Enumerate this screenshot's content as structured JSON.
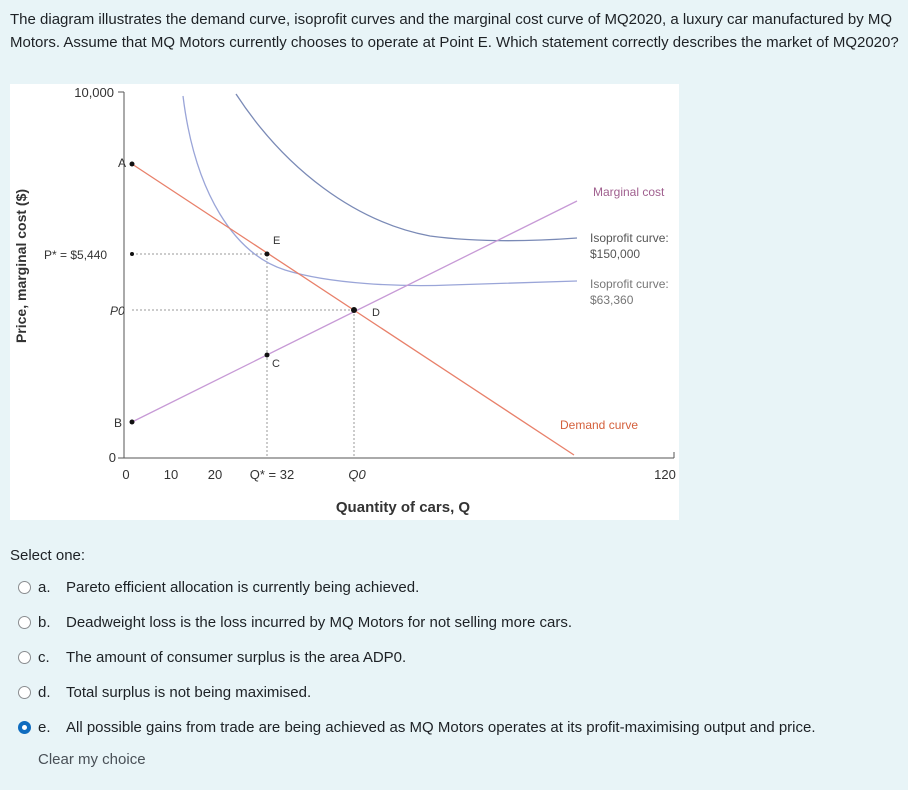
{
  "question": {
    "text": "The diagram illustrates the demand curve, isoprofit curves and the marginal cost curve of MQ2020, a luxury car manufactured by MQ Motors. Assume that MQ Motors currently chooses to operate at Point E. Which statement correctly describes the market of MQ2020?"
  },
  "figure": {
    "y_axis_label": "Price, marginal cost ($)",
    "x_axis_label": "Quantity of cars, Q",
    "y_tick_top": "10,000",
    "y_tick_zero": "0",
    "x_ticks": [
      "0",
      "10",
      "20",
      "Q* = 32",
      "Q0",
      "120"
    ],
    "points": {
      "A": "A",
      "B": "B",
      "C": "C",
      "D": "D",
      "E": "E"
    },
    "price_labels": {
      "p_star": "P* = $5,440",
      "p0": "P0"
    },
    "curve_labels": {
      "marginal_cost": "Marginal cost",
      "isoprofit_high": "Isoprofit curve:",
      "isoprofit_high_value": "$150,000",
      "isoprofit_low": "Isoprofit curve:",
      "isoprofit_low_value": "$63,360",
      "demand": "Demand curve"
    },
    "colors": {
      "demand": "#e8806a",
      "marginal_cost": "#c79ad6",
      "isoprofit_high": "#7a8ab6",
      "isoprofit_low": "#9aa5d8",
      "marginal_cost_label": "#a0608f",
      "demand_label": "#d4603c"
    }
  },
  "answers": {
    "select_one": "Select one:",
    "options": [
      {
        "letter": "a.",
        "text": "Pareto efficient allocation is currently being achieved.",
        "selected": false
      },
      {
        "letter": "b.",
        "text": "Deadweight loss is the loss incurred by MQ Motors for not selling more cars.",
        "selected": false
      },
      {
        "letter": "c.",
        "text": "The amount of consumer surplus is the area ADP0.",
        "selected": false
      },
      {
        "letter": "d.",
        "text": "Total surplus is not being maximised.",
        "selected": false
      },
      {
        "letter": "e.",
        "text": "All possible gains from trade are being achieved as MQ Motors operates at its profit-maximising output and price.",
        "selected": true
      }
    ],
    "clear_choice": "Clear my choice"
  }
}
